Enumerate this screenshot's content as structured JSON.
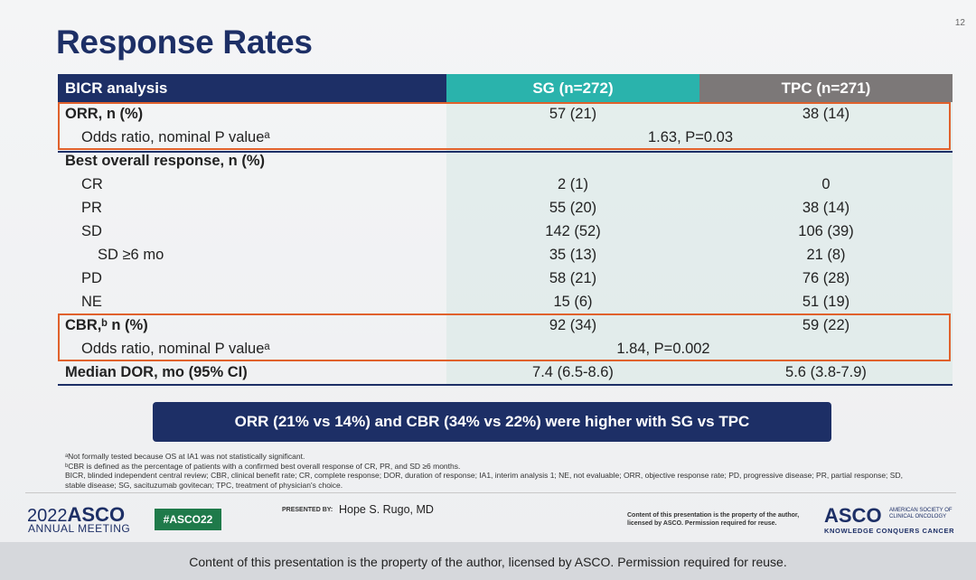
{
  "slide": {
    "number": "12",
    "title": "Response Rates"
  },
  "table": {
    "headers": [
      "BICR analysis",
      "SG (n=272)",
      "TPC (n=271)"
    ],
    "rows": [
      {
        "label": "ORR, n (%)",
        "sg": "57 (21)",
        "tpc": "38 (14)"
      },
      {
        "label": "Odds ratio, nominal P valueᵃ",
        "combined": "1.63, P=0.03"
      },
      {
        "label": "Best overall response, n (%)"
      },
      {
        "label": "CR",
        "sg": "2 (1)",
        "tpc": "0"
      },
      {
        "label": "PR",
        "sg": "55 (20)",
        "tpc": "38 (14)"
      },
      {
        "label": "SD",
        "sg": "142 (52)",
        "tpc": "106 (39)"
      },
      {
        "label": "SD ≥6 mo",
        "sg": "35 (13)",
        "tpc": "21 (8)"
      },
      {
        "label": "PD",
        "sg": "58 (21)",
        "tpc": "76 (28)"
      },
      {
        "label": "NE",
        "sg": "15 (6)",
        "tpc": "51 (19)"
      },
      {
        "label": "CBR,ᵇ n (%)",
        "sg": "92 (34)",
        "tpc": "59 (22)"
      },
      {
        "label": "Odds ratio, nominal P valueᵃ",
        "combined": "1.84, P=0.002"
      },
      {
        "label": "Median DOR, mo (95% CI)",
        "sg": "7.4 (6.5-8.6)",
        "tpc": "5.6 (3.8-7.9)"
      }
    ]
  },
  "callout": "ORR (21% vs 14%) and CBR (34% vs 22%) were higher with SG vs TPC",
  "footnotes": [
    "ᵃNot formally tested because OS at IA1 was not statistically significant.",
    "ᵇCBR is defined as the percentage of patients with a confirmed best overall response of CR, PR, and SD ≥6 months.",
    "BICR, blinded independent central review; CBR, clinical benefit rate; CR, complete response; DOR, duration of response; IA1, interim analysis 1; NE, not evaluable; ORR, objective response rate; PD, progressive disease; PR, partial response; SD, stable disease; SG, sacituzumab govitecan; TPC, treatment of physician's choice."
  ],
  "footer": {
    "year": "2022",
    "asco": "ASCO",
    "meeting": "ANNUAL MEETING",
    "hashtag": "#ASCO22",
    "presented_by_label": "PRESENTED BY:",
    "presenter": "Hope S. Rugo, MD",
    "content_note": "Content of this presentation is the property of the author, licensed by ASCO. Permission required for reuse.",
    "asco_logo": "ASCO",
    "asco_org": "AMERICAN SOCIETY OF CLINICAL ONCOLOGY",
    "asco_tagline": "KNOWLEDGE CONQUERS CANCER"
  },
  "bottom_caption": "Content of this presentation is the property of the author, licensed by ASCO. Permission required for reuse.",
  "colors": {
    "navy": "#1d2f66",
    "teal": "#2ab3ac",
    "gray_header": "#7c7878",
    "highlight_box": "#e0612c",
    "hashtag_green": "#1f7a4a"
  }
}
